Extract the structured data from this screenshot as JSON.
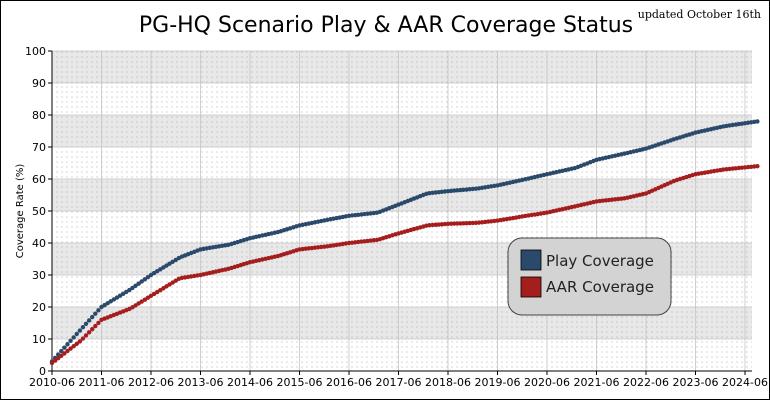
{
  "chart_data": {
    "type": "scatter",
    "title": "PG-HQ Scenario Play & AAR Coverage Status",
    "subtitle": "updated October 16th",
    "xlabel": "",
    "ylabel": "Coverage Rate (%)",
    "xlim": [
      "2010-06",
      "2024-09"
    ],
    "ylim": [
      0,
      100
    ],
    "ytick_step": 10,
    "x_ticks": [
      "2010-06",
      "2011-06",
      "2012-06",
      "2013-06",
      "2014-06",
      "2015-06",
      "2016-06",
      "2017-06",
      "2018-06",
      "2019-06",
      "2020-06",
      "2021-06",
      "2022-06",
      "2023-06",
      "2024-06"
    ],
    "y_ticks": [
      0,
      10,
      20,
      30,
      40,
      50,
      60,
      70,
      80,
      90,
      100
    ],
    "grid": true,
    "banded_background": true,
    "legend_position": "center-right",
    "series": [
      {
        "name": "Play Coverage",
        "color": "#2b4a6b",
        "x": [
          "2010-06",
          "2011-01",
          "2011-06",
          "2012-01",
          "2012-06",
          "2013-01",
          "2013-06",
          "2014-01",
          "2014-06",
          "2015-01",
          "2015-06",
          "2016-01",
          "2016-06",
          "2017-01",
          "2017-06",
          "2018-01",
          "2018-06",
          "2019-01",
          "2019-06",
          "2020-01",
          "2020-06",
          "2021-01",
          "2021-06",
          "2022-01",
          "2022-06",
          "2023-01",
          "2023-06",
          "2024-01",
          "2024-09"
        ],
        "values": [
          3,
          13,
          20,
          25.5,
          30,
          35.5,
          38,
          39.5,
          41.5,
          43.5,
          45.5,
          47.3,
          48.5,
          49.5,
          52,
          55.5,
          56.2,
          57,
          58,
          60,
          61.5,
          63.5,
          66,
          68,
          69.5,
          72.5,
          74.5,
          76.5,
          78
        ]
      },
      {
        "name": "AAR Coverage",
        "color": "#a41e1e",
        "x": [
          "2010-06",
          "2011-01",
          "2011-06",
          "2012-01",
          "2012-06",
          "2013-01",
          "2013-06",
          "2014-01",
          "2014-06",
          "2015-01",
          "2015-06",
          "2016-01",
          "2016-06",
          "2017-01",
          "2017-06",
          "2018-01",
          "2018-06",
          "2019-01",
          "2019-06",
          "2020-01",
          "2020-06",
          "2021-01",
          "2021-06",
          "2022-01",
          "2022-06",
          "2023-01",
          "2023-06",
          "2024-01",
          "2024-09"
        ],
        "values": [
          2.5,
          9.5,
          16,
          19.5,
          23.5,
          29,
          30,
          32,
          34,
          36,
          38,
          39,
          40,
          41,
          43,
          45.5,
          46,
          46.3,
          47,
          48.5,
          49.5,
          51.5,
          53,
          54,
          55.5,
          59.5,
          61.5,
          63,
          64
        ]
      }
    ]
  }
}
